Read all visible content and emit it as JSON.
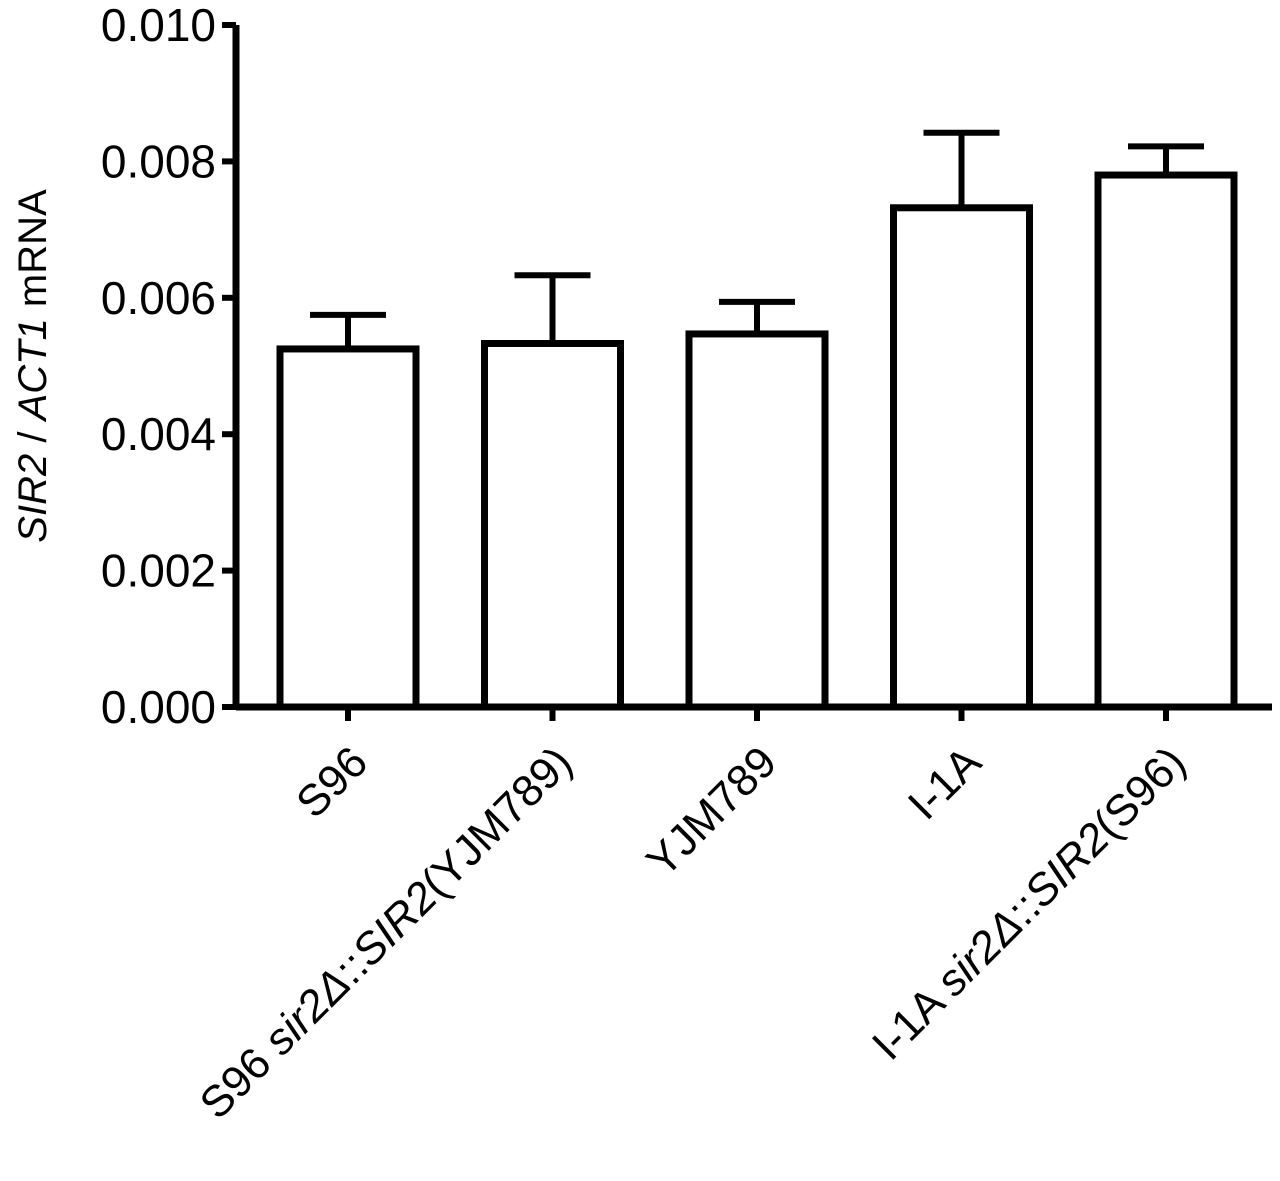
{
  "chart_data": {
    "type": "bar",
    "ylabel_parts": [
      {
        "text": "SIR2",
        "italic": true
      },
      {
        "text": " / ",
        "italic": false
      },
      {
        "text": "ACT1",
        "italic": true
      },
      {
        "text": " mRNA",
        "italic": false
      }
    ],
    "ylim": [
      0,
      0.01
    ],
    "yticks": [
      "0.000",
      "0.002",
      "0.004",
      "0.006",
      "0.008",
      "0.010"
    ],
    "categories": [
      [
        {
          "text": "S96",
          "italic": false
        }
      ],
      [
        {
          "text": "S96 ",
          "italic": false
        },
        {
          "text": "sir2Δ",
          "italic": true
        },
        {
          "text": "::",
          "italic": false
        },
        {
          "text": "SIR2",
          "italic": true
        },
        {
          "text": "(YJM789)",
          "italic": false
        }
      ],
      [
        {
          "text": "YJM789",
          "italic": false
        }
      ],
      [
        {
          "text": "I-1A",
          "italic": false
        }
      ],
      [
        {
          "text": "I-1A ",
          "italic": false
        },
        {
          "text": "sir2Δ",
          "italic": true
        },
        {
          "text": "::",
          "italic": false
        },
        {
          "text": "SIR2",
          "italic": true
        },
        {
          "text": "(S96)",
          "italic": false
        }
      ]
    ],
    "values": [
      0.00525,
      0.00533,
      0.00547,
      0.00732,
      0.0078
    ],
    "errors": [
      0.0005,
      0.001,
      0.00047,
      0.0011,
      0.00042
    ],
    "bar_color": "#ffffff",
    "stroke_color": "#000000",
    "grid": false,
    "legend": "none"
  }
}
